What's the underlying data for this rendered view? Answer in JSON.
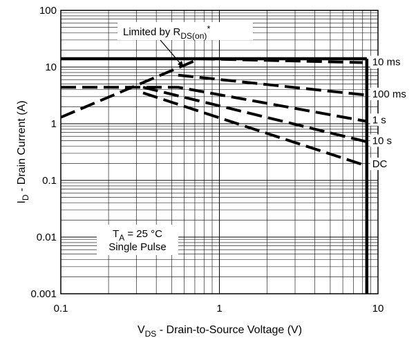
{
  "chart_data": {
    "type": "line",
    "xscale": "log",
    "yscale": "log",
    "xlim": [
      0.1,
      10
    ],
    "ylim": [
      0.001,
      100
    ],
    "grid": true,
    "xlabel": {
      "main": "V",
      "sub": "DS",
      "rest": " - Drain-to-Source Voltage (V)"
    },
    "ylabel": {
      "main": "I",
      "sub": "D",
      "rest": " - Drain Current (A)"
    },
    "x_ticks": [
      {
        "value": 0.1,
        "label": "0.1"
      },
      {
        "value": 1,
        "label": "1"
      },
      {
        "value": 10,
        "label": "10"
      }
    ],
    "y_ticks": [
      {
        "value": 100,
        "label": "100"
      },
      {
        "value": 10,
        "label": "10"
      },
      {
        "value": 1,
        "label": "1"
      },
      {
        "value": 0.1,
        "label": "0.1"
      },
      {
        "value": 0.01,
        "label": "0.01"
      },
      {
        "value": 0.001,
        "label": "0.001"
      }
    ],
    "limits": {
      "current_limit": {
        "x": [
          0.1,
          8.5
        ],
        "y": [
          14,
          14
        ]
      },
      "voltage_limit": {
        "x": [
          8.5,
          8.5
        ],
        "y": [
          0.001,
          14
        ]
      }
    },
    "rds_on_line": {
      "x": [
        0.1,
        0.75
      ],
      "y": [
        1.3,
        14
      ]
    },
    "series": [
      {
        "name": "10 ms",
        "x": [
          0.75,
          8.0
        ],
        "y": [
          14,
          12
        ]
      },
      {
        "name": "100 ms",
        "x": [
          0.55,
          8.5
        ],
        "y": [
          7.2,
          3.2
        ]
      },
      {
        "name": "1 s",
        "x": [
          0.1,
          0.55,
          8.5
        ],
        "y": [
          4.4,
          4.4,
          1.1
        ]
      },
      {
        "name": "10 s",
        "x": [
          0.33,
          8.5
        ],
        "y": [
          4.4,
          0.48
        ]
      },
      {
        "name": "DC",
        "x": [
          0.33,
          8.5
        ],
        "y": [
          3.5,
          0.18
        ]
      }
    ],
    "curve_labels": [
      {
        "text": "10 ms",
        "x": 9.2,
        "y": 11
      },
      {
        "text": "100 ms",
        "x": 9.2,
        "y": 3.0
      },
      {
        "text": "1 s",
        "x": 9.2,
        "y": 1.05
      },
      {
        "text": "10 s",
        "x": 9.2,
        "y": 0.45
      },
      {
        "text": "DC",
        "x": 9.2,
        "y": 0.175
      }
    ],
    "annotations": {
      "rds": {
        "main": "Limited by R",
        "sub": "DS(on)",
        "rest": "*"
      },
      "conditions": {
        "line1": {
          "main": "T",
          "sub": "A",
          "rest": " = 25 °C"
        },
        "line2": "Single Pulse"
      }
    }
  }
}
